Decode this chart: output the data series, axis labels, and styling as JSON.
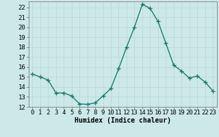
{
  "x": [
    0,
    1,
    2,
    3,
    4,
    5,
    6,
    7,
    8,
    9,
    10,
    11,
    12,
    13,
    14,
    15,
    16,
    17,
    18,
    19,
    20,
    21,
    22,
    23
  ],
  "y": [
    15.3,
    15.0,
    14.7,
    13.4,
    13.4,
    13.1,
    12.3,
    12.25,
    12.4,
    13.1,
    13.85,
    15.85,
    18.0,
    20.0,
    22.3,
    21.9,
    20.6,
    18.4,
    16.2,
    15.6,
    14.9,
    15.1,
    14.5,
    13.6
  ],
  "line_color": "#1a7a6e",
  "marker": "+",
  "markersize": 4,
  "linewidth": 1.0,
  "bg_color": "#cce8e8",
  "grid_color": "#b8d4d4",
  "xlabel": "Humidex (Indice chaleur)",
  "xlabel_fontsize": 7,
  "tick_fontsize": 6.5,
  "xlim": [
    -0.5,
    23.5
  ],
  "ylim": [
    12,
    22.6
  ],
  "yticks": [
    12,
    13,
    14,
    15,
    16,
    17,
    18,
    19,
    20,
    21,
    22
  ],
  "xticks": [
    0,
    1,
    2,
    3,
    4,
    5,
    6,
    7,
    8,
    9,
    10,
    11,
    12,
    13,
    14,
    15,
    16,
    17,
    18,
    19,
    20,
    21,
    22,
    23
  ]
}
